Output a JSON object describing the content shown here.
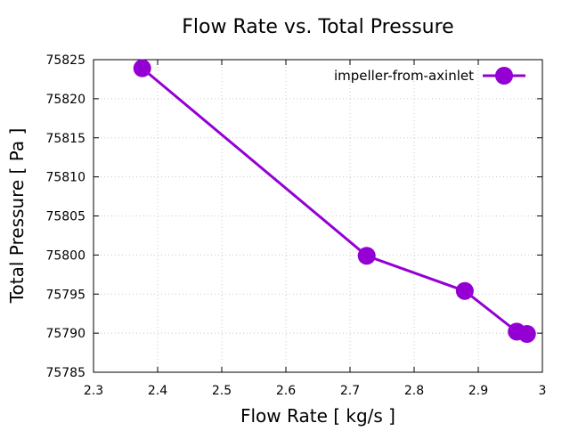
{
  "chart_data": {
    "type": "line",
    "title": "Flow Rate vs. Total Pressure",
    "xlabel": "Flow Rate [ kg/s ]",
    "ylabel": "Total Pressure [ Pa ]",
    "xlim": [
      2.3,
      3.0
    ],
    "ylim": [
      75785,
      75825
    ],
    "xticks": [
      "2.3",
      "2.4",
      "2.5",
      "2.6",
      "2.7",
      "2.8",
      "2.9",
      "3"
    ],
    "xtick_values": [
      2.3,
      2.4,
      2.5,
      2.6,
      2.7,
      2.8,
      2.9,
      3.0
    ],
    "yticks": [
      "75785",
      "75790",
      "75795",
      "75800",
      "75805",
      "75810",
      "75815",
      "75820",
      "75825"
    ],
    "ytick_values": [
      75785,
      75790,
      75795,
      75800,
      75805,
      75810,
      75815,
      75820,
      75825
    ],
    "grid": true,
    "legend_position": "top-right",
    "series": [
      {
        "name": "impeller-from-axinlet",
        "color": "#9400d3",
        "x": [
          2.376,
          2.726,
          2.879,
          2.96,
          2.976
        ],
        "y": [
          75823.9,
          75799.9,
          75795.4,
          75790.2,
          75789.9
        ]
      }
    ]
  }
}
